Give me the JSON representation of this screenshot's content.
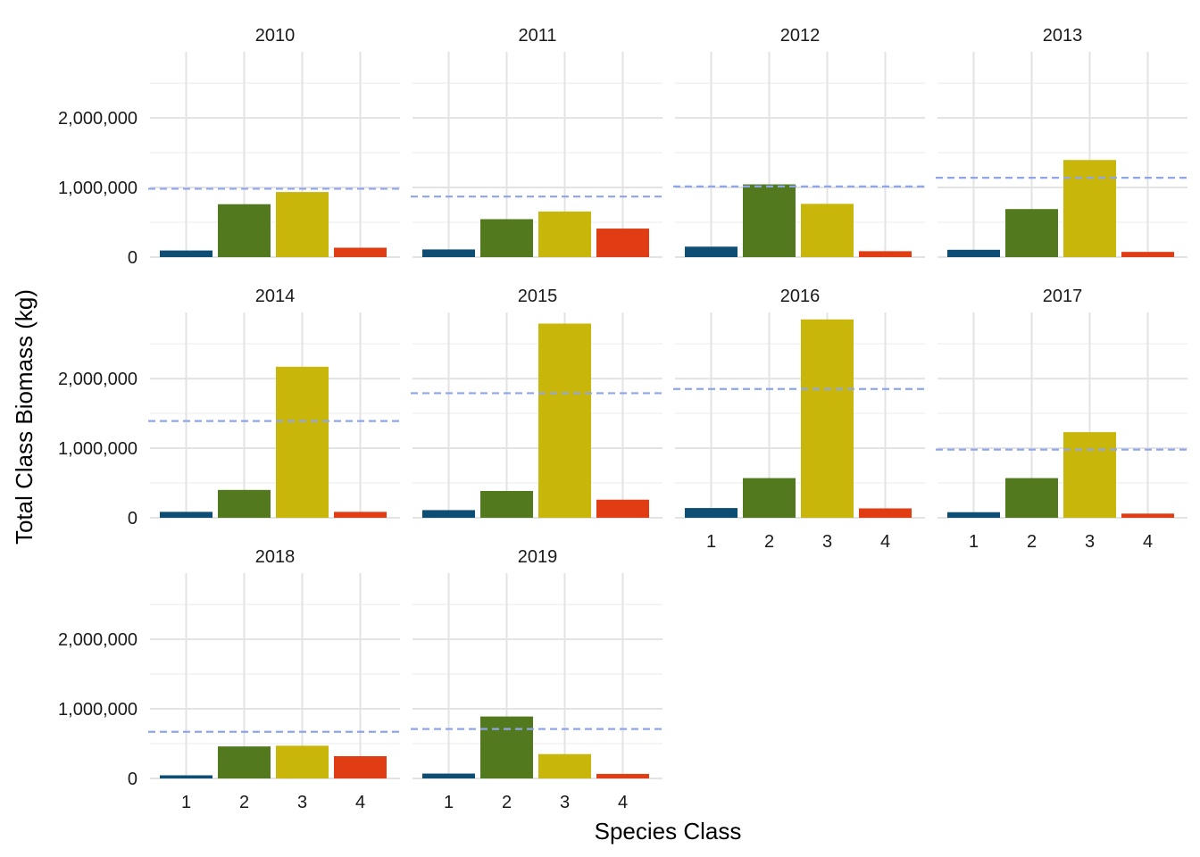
{
  "chart_data": {
    "type": "bar",
    "xlabel": "Species Class",
    "ylabel": "Total Class Biomass (kg)",
    "categories": [
      "1",
      "2",
      "3",
      "4"
    ],
    "ylim": [
      0,
      2950000
    ],
    "yticks": [
      0,
      1000000,
      2000000
    ],
    "ytick_labels": [
      "0",
      "1,000,000",
      "2,000,000"
    ],
    "grid": true,
    "legend": "none",
    "colors": [
      "#0e4d74",
      "#53791e",
      "#c8b70a",
      "#e03d14"
    ],
    "mean_line_color": "#8fa5e8",
    "facets": [
      {
        "year": "2010",
        "values": [
          95000,
          760000,
          935000,
          135000
        ],
        "mean": 982000
      },
      {
        "year": "2011",
        "values": [
          110000,
          545000,
          655000,
          410000
        ],
        "mean": 870000
      },
      {
        "year": "2012",
        "values": [
          150000,
          1045000,
          765000,
          85000
        ],
        "mean": 1015000
      },
      {
        "year": "2013",
        "values": [
          105000,
          690000,
          1395000,
          75000
        ],
        "mean": 1140000
      },
      {
        "year": "2014",
        "values": [
          85000,
          400000,
          2170000,
          85000
        ],
        "mean": 1390000
      },
      {
        "year": "2015",
        "values": [
          110000,
          385000,
          2790000,
          260000
        ],
        "mean": 1790000
      },
      {
        "year": "2016",
        "values": [
          140000,
          570000,
          2850000,
          135000
        ],
        "mean": 1850000
      },
      {
        "year": "2017",
        "values": [
          80000,
          570000,
          1230000,
          60000
        ],
        "mean": 980000
      },
      {
        "year": "2018",
        "values": [
          45000,
          460000,
          470000,
          320000
        ],
        "mean": 670000
      },
      {
        "year": "2019",
        "values": [
          70000,
          890000,
          350000,
          65000
        ],
        "mean": 710000
      }
    ]
  }
}
